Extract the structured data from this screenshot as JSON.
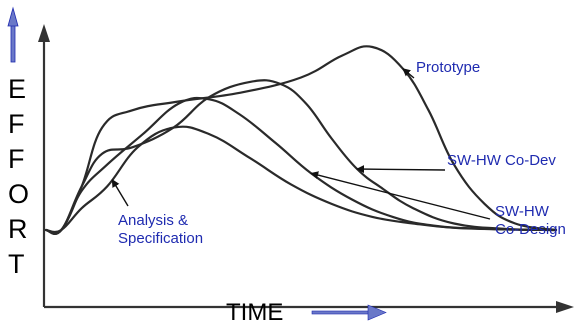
{
  "chart_data": {
    "type": "line",
    "title": "",
    "xlabel": "TIME",
    "ylabel": "EFFORT",
    "grid": false,
    "colors": {
      "curve": "#2a2a2a",
      "annotation_text": "#1f2bb0",
      "axis_arrow": "#6a78c8"
    },
    "series": [
      {
        "label": "Prototype",
        "x": [
          0,
          3,
          7,
          11,
          17,
          26,
          38,
          50,
          58,
          64,
          70,
          75,
          80,
          86,
          92,
          100
        ],
        "y": [
          0,
          0,
          20,
          47,
          55,
          59,
          63,
          70,
          80,
          84,
          74,
          55,
          30,
          12,
          3,
          0
        ]
      },
      {
        "label": "SW-HW Co-Dev",
        "x": [
          0,
          3,
          7,
          11,
          17,
          25,
          32,
          40,
          46,
          51,
          56,
          61,
          66,
          72,
          80,
          90,
          100
        ],
        "y": [
          0,
          0,
          20,
          35,
          38,
          47,
          61,
          68,
          67,
          58,
          42,
          28,
          19,
          10,
          3,
          0.5,
          0
        ]
      },
      {
        "label": "Analysis & Specification",
        "x": [
          0,
          3,
          7,
          12,
          18,
          25,
          32,
          40,
          48,
          56,
          64,
          72,
          80,
          90,
          100
        ],
        "y": [
          0,
          0,
          10,
          20,
          38,
          47,
          44,
          33,
          21,
          12,
          6,
          3,
          1,
          0.3,
          0
        ]
      },
      {
        "label": "SW-HW Co-Design",
        "x": [
          0,
          3,
          7,
          12,
          19,
          26,
          32,
          38,
          45,
          52,
          60,
          68,
          76,
          86,
          100
        ],
        "y": [
          0,
          0,
          18,
          30,
          44,
          58,
          60,
          53,
          40,
          26,
          14,
          6,
          2,
          0.5,
          0
        ]
      }
    ],
    "annotations": [
      {
        "lines": [
          "Prototype"
        ],
        "series_index": 0
      },
      {
        "lines": [
          "SW-HW Co-Dev"
        ],
        "series_index": 1
      },
      {
        "lines": [
          "SW-HW",
          "Co-Design"
        ],
        "series_index": 3
      },
      {
        "lines": [
          "Analysis &",
          "Specification"
        ],
        "series_index": 2
      }
    ],
    "ylabel_letters": [
      "E",
      "F",
      "F",
      "O",
      "R",
      "T"
    ]
  }
}
